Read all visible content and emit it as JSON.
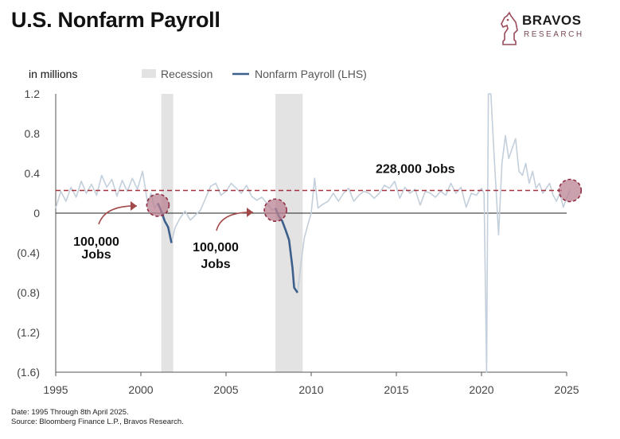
{
  "header": {
    "title": "U.S. Nonfarm Payroll",
    "brand_name": "BRAVOS",
    "brand_sub": "RESEARCH",
    "brand_logo_icon": "knight-chess-piece-icon"
  },
  "footer": {
    "date_note": "Date: 1995 Through 8th April 2025.",
    "source_note": "Source: Bloomberg Finance L.P., Bravos Research."
  },
  "chart_data": {
    "type": "line",
    "unit_label": "in millions",
    "legend": [
      "Recession",
      "Nonfarm Payroll (LHS)"
    ],
    "legend_placement": "top-center",
    "x_ticks": [
      1995,
      2000,
      2005,
      2010,
      2015,
      2020,
      2025
    ],
    "y_ticks": [
      1.2,
      0.8,
      0.4,
      0,
      -0.4,
      -0.8,
      -1.2,
      -1.6
    ],
    "y_tick_labels": [
      "1.2",
      "0.8",
      "0.4",
      "0",
      "(0.4)",
      "(0.8)",
      "(1.2)",
      "(1.6)"
    ],
    "xlim": [
      1995,
      2025
    ],
    "ylim": [
      -1.6,
      1.2
    ],
    "grid": false,
    "recessions": [
      [
        2001.2,
        2001.9
      ],
      [
        2007.9,
        2009.5
      ]
    ],
    "reference_line": {
      "value": 0.228,
      "label": "228,000 Jobs"
    },
    "annotations": [
      {
        "text_lines": [
          "100,000",
          "Jobs"
        ],
        "x": 2001.0,
        "y": 0.08
      },
      {
        "text_lines": [
          "100,000",
          "Jobs"
        ],
        "x": 2007.9,
        "y": 0.03
      },
      {
        "x": 2025.2,
        "y": 0.228
      }
    ],
    "series": [
      {
        "name": "Nonfarm Payroll (LHS)",
        "context_color": "#c3cfdb",
        "highlight_color": "#3d5f8c",
        "points": [
          [
            1995.0,
            0.05
          ],
          [
            1995.3,
            0.22
          ],
          [
            1995.6,
            0.12
          ],
          [
            1995.9,
            0.26
          ],
          [
            1996.2,
            0.16
          ],
          [
            1996.5,
            0.32
          ],
          [
            1996.8,
            0.2
          ],
          [
            1997.1,
            0.29
          ],
          [
            1997.4,
            0.18
          ],
          [
            1997.7,
            0.38
          ],
          [
            1998.0,
            0.26
          ],
          [
            1998.3,
            0.34
          ],
          [
            1998.6,
            0.17
          ],
          [
            1998.9,
            0.33
          ],
          [
            1999.2,
            0.22
          ],
          [
            1999.5,
            0.35
          ],
          [
            1999.8,
            0.24
          ],
          [
            2000.1,
            0.42
          ],
          [
            2000.4,
            0.1
          ],
          [
            2000.6,
            0.2
          ],
          [
            2000.8,
            0.05
          ],
          [
            2001.0,
            0.1
          ],
          [
            2001.2,
            0.02
          ],
          [
            2001.4,
            -0.08
          ],
          [
            2001.6,
            -0.14
          ],
          [
            2001.8,
            -0.3
          ],
          [
            2002.0,
            -0.15
          ],
          [
            2002.3,
            -0.05
          ],
          [
            2002.6,
            0.02
          ],
          [
            2002.9,
            -0.07
          ],
          [
            2003.2,
            -0.02
          ],
          [
            2003.5,
            0.03
          ],
          [
            2003.8,
            0.15
          ],
          [
            2004.1,
            0.27
          ],
          [
            2004.4,
            0.3
          ],
          [
            2004.7,
            0.18
          ],
          [
            2005.0,
            0.22
          ],
          [
            2005.3,
            0.3
          ],
          [
            2005.6,
            0.25
          ],
          [
            2005.9,
            0.2
          ],
          [
            2006.2,
            0.28
          ],
          [
            2006.5,
            0.17
          ],
          [
            2006.8,
            0.13
          ],
          [
            2007.1,
            0.16
          ],
          [
            2007.4,
            0.1
          ],
          [
            2007.7,
            0.03
          ],
          [
            2007.9,
            0.05
          ],
          [
            2008.1,
            -0.03
          ],
          [
            2008.3,
            -0.08
          ],
          [
            2008.5,
            -0.17
          ],
          [
            2008.7,
            -0.27
          ],
          [
            2008.9,
            -0.55
          ],
          [
            2009.0,
            -0.75
          ],
          [
            2009.2,
            -0.8
          ],
          [
            2009.4,
            -0.5
          ],
          [
            2009.6,
            -0.25
          ],
          [
            2009.8,
            -0.12
          ],
          [
            2010.0,
            0.0
          ],
          [
            2010.2,
            0.35
          ],
          [
            2010.4,
            0.05
          ],
          [
            2010.6,
            0.08
          ],
          [
            2011.0,
            0.12
          ],
          [
            2011.3,
            0.2
          ],
          [
            2011.6,
            0.12
          ],
          [
            2011.9,
            0.2
          ],
          [
            2012.2,
            0.25
          ],
          [
            2012.5,
            0.12
          ],
          [
            2012.8,
            0.18
          ],
          [
            2013.1,
            0.22
          ],
          [
            2013.4,
            0.2
          ],
          [
            2013.7,
            0.15
          ],
          [
            2014.0,
            0.2
          ],
          [
            2014.3,
            0.28
          ],
          [
            2014.6,
            0.25
          ],
          [
            2014.9,
            0.32
          ],
          [
            2015.2,
            0.15
          ],
          [
            2015.5,
            0.26
          ],
          [
            2015.8,
            0.2
          ],
          [
            2016.1,
            0.24
          ],
          [
            2016.4,
            0.08
          ],
          [
            2016.7,
            0.22
          ],
          [
            2017.0,
            0.2
          ],
          [
            2017.3,
            0.16
          ],
          [
            2017.6,
            0.22
          ],
          [
            2017.9,
            0.18
          ],
          [
            2018.2,
            0.3
          ],
          [
            2018.5,
            0.2
          ],
          [
            2018.8,
            0.26
          ],
          [
            2019.1,
            0.06
          ],
          [
            2019.4,
            0.2
          ],
          [
            2019.7,
            0.18
          ],
          [
            2020.0,
            0.25
          ],
          [
            2020.15,
            0.2
          ],
          [
            2020.3,
            -1.6
          ],
          [
            2020.4,
            1.2
          ],
          [
            2020.55,
            1.2
          ],
          [
            2020.7,
            0.7
          ],
          [
            2020.85,
            0.25
          ],
          [
            2021.0,
            -0.22
          ],
          [
            2021.2,
            0.5
          ],
          [
            2021.4,
            0.78
          ],
          [
            2021.6,
            0.55
          ],
          [
            2021.8,
            0.65
          ],
          [
            2022.0,
            0.75
          ],
          [
            2022.2,
            0.42
          ],
          [
            2022.4,
            0.38
          ],
          [
            2022.6,
            0.5
          ],
          [
            2022.8,
            0.3
          ],
          [
            2023.0,
            0.42
          ],
          [
            2023.2,
            0.25
          ],
          [
            2023.4,
            0.3
          ],
          [
            2023.6,
            0.2
          ],
          [
            2023.8,
            0.25
          ],
          [
            2024.0,
            0.3
          ],
          [
            2024.2,
            0.18
          ],
          [
            2024.4,
            0.12
          ],
          [
            2024.6,
            0.2
          ],
          [
            2024.8,
            0.06
          ],
          [
            2025.0,
            0.15
          ],
          [
            2025.2,
            0.23
          ]
        ],
        "highlight_ranges": [
          [
            2001.0,
            2001.9
          ],
          [
            2007.9,
            2009.3
          ]
        ]
      }
    ]
  },
  "colors": {
    "recession": "#e3e3e3",
    "reference_line": "#a3333d",
    "highlight_circle": "#b98293",
    "arrow": "#a24a4a"
  }
}
